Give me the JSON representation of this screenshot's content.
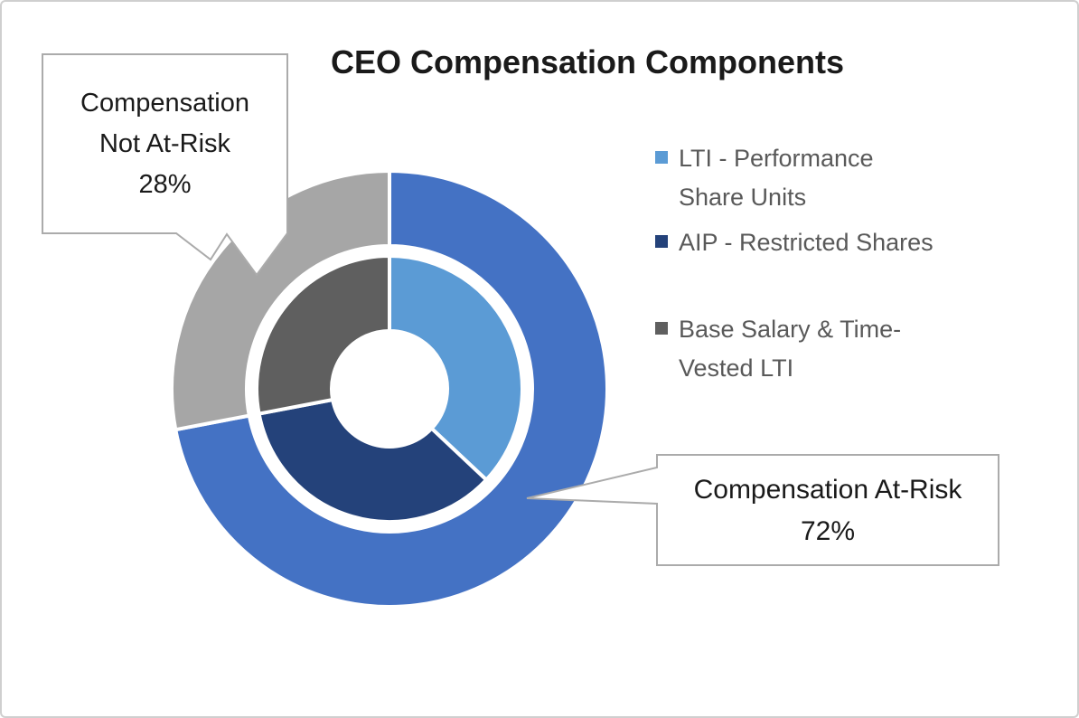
{
  "header": {
    "title": "CEO Compensation Components"
  },
  "chart_data": {
    "type": "pie",
    "subtype": "double-doughnut",
    "title": "CEO Compensation Components",
    "start_angle_deg": 0,
    "direction": "clockwise",
    "legend_position": "right",
    "rings": [
      {
        "id": "outer",
        "segments": [
          {
            "label": "Compensation At-Risk",
            "value": 72,
            "color": "#4472C4"
          },
          {
            "label": "Compensation Not At-Risk",
            "value": 28,
            "color": "#A6A6A6"
          }
        ]
      },
      {
        "id": "inner",
        "segments": [
          {
            "label": "LTI - Performance Share Units",
            "value": 37,
            "color": "#5B9BD5"
          },
          {
            "label": "AIP - Restricted Shares",
            "value": 35,
            "color": "#24427A"
          },
          {
            "label": "Base Salary & Time-Vested LTI",
            "value": 28,
            "color": "#5F5F5F"
          }
        ]
      }
    ]
  },
  "legend": {
    "items": [
      {
        "color": "#5B9BD5",
        "lines": [
          "LTI - Performance",
          "Share Units"
        ]
      },
      {
        "color": "#24427A",
        "lines": [
          "AIP - Restricted Shares"
        ]
      },
      {
        "color": "#5F5F5F",
        "lines": [
          "Base Salary & Time-",
          "Vested LTI"
        ]
      }
    ]
  },
  "callouts": {
    "not_at_risk": {
      "lines": [
        "Compensation",
        "Not At-Risk",
        "28%"
      ]
    },
    "at_risk": {
      "lines": [
        "Compensation At-Risk",
        "72%"
      ]
    }
  },
  "colors": {
    "at_risk_blue": "#4472C4",
    "not_at_risk_gray": "#A6A6A6",
    "lti_psu_light_blue": "#5B9BD5",
    "aip_navy": "#24427A",
    "base_salary_dark_gray": "#5F5F5F",
    "legend_text": "#595959",
    "callout_border": "#ABABAB",
    "frame_border": "#CFCFCF"
  }
}
